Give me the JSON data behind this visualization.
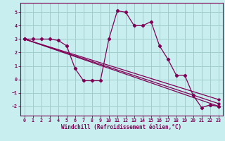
{
  "background_color": "#c8eef0",
  "grid_color": "#a0cccc",
  "line_color": "#800055",
  "xlabel": "Windchill (Refroidissement éolien,°C)",
  "xlim": [
    -0.5,
    23.5
  ],
  "ylim": [
    -2.7,
    5.7
  ],
  "yticks": [
    -2,
    -1,
    0,
    1,
    2,
    3,
    4,
    5
  ],
  "xticks": [
    0,
    1,
    2,
    3,
    4,
    5,
    6,
    7,
    8,
    9,
    10,
    11,
    12,
    13,
    14,
    15,
    16,
    17,
    18,
    19,
    20,
    21,
    22,
    23
  ],
  "wiggly_x": [
    0,
    1,
    2,
    3,
    4,
    5,
    6,
    7,
    8,
    9,
    10,
    11,
    12,
    13,
    14,
    15,
    16,
    17,
    18,
    19,
    20,
    21,
    22,
    23
  ],
  "wiggly_y": [
    3.0,
    3.0,
    3.0,
    3.0,
    2.9,
    2.5,
    0.8,
    -0.1,
    -0.1,
    -0.1,
    3.0,
    5.1,
    5.0,
    4.0,
    4.0,
    4.3,
    2.5,
    1.5,
    0.3,
    0.3,
    -1.2,
    -2.1,
    -1.9,
    -2.0
  ],
  "straight_lines": [
    {
      "x0": 0,
      "y0": 3.0,
      "x1": 23,
      "y1": -2.0
    },
    {
      "x0": 0,
      "y0": 3.0,
      "x1": 23,
      "y1": -1.8
    },
    {
      "x0": 0,
      "y0": 3.0,
      "x1": 23,
      "y1": -1.5
    }
  ]
}
